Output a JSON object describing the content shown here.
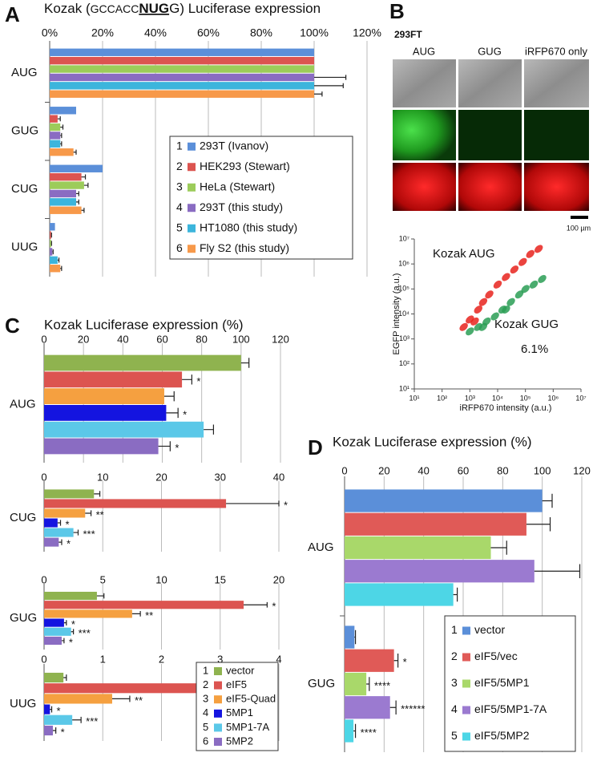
{
  "panel_labels": [
    "A",
    "B",
    "C",
    "D"
  ],
  "images": {
    "cell_line": "293FT",
    "columns": [
      "AUG",
      "GUG",
      "iRFP670 only"
    ],
    "scale_bar": "100 µm"
  },
  "chart_data": [
    {
      "type": "hbar",
      "title_parts": [
        "Kozak (",
        "GCCACC",
        "NUG",
        "G) Luciferase expression"
      ],
      "categories": [
        "AUG",
        "GUG",
        "CUG",
        "UUG"
      ],
      "xlim": [
        0,
        120
      ],
      "xticks": [
        {
          "value": 0,
          "label": "0%"
        },
        {
          "value": 20,
          "label": "20%"
        },
        {
          "value": 40,
          "label": "40%"
        },
        {
          "value": 60,
          "label": "60%"
        },
        {
          "value": 80,
          "label": "80%"
        },
        {
          "value": 100,
          "label": "100%"
        },
        {
          "value": 120,
          "label": "120%"
        }
      ],
      "grid": true,
      "legend_index": [
        "1",
        "2",
        "3",
        "4",
        "5",
        "6"
      ],
      "series": [
        {
          "name": "293T (Ivanov)",
          "color": "#5b8fd9",
          "values": [
            100,
            10,
            20,
            2
          ],
          "errors": [
            null,
            null,
            null,
            null
          ]
        },
        {
          "name": "HEK293 (Stewart)",
          "color": "#dc5450",
          "values": [
            100,
            3,
            12,
            0.5
          ],
          "errors": [
            null,
            1,
            1.5,
            0.2
          ]
        },
        {
          "name": "HeLa (Stewart)",
          "color": "#9ccc5a",
          "values": [
            100,
            4,
            13,
            0.5
          ],
          "errors": [
            null,
            1,
            1.5,
            0.2
          ]
        },
        {
          "name": "293T (this study)",
          "color": "#8a6cc2",
          "values": [
            100,
            4,
            10,
            1
          ],
          "errors": [
            12,
            0.5,
            1,
            0.3
          ]
        },
        {
          "name": "HT1080 (this study)",
          "color": "#3cb5dc",
          "values": [
            100,
            4,
            10,
            3
          ],
          "errors": [
            11,
            0.5,
            1,
            0.5
          ]
        },
        {
          "name": "Fly S2 (this study)",
          "color": "#f7994a",
          "values": [
            100,
            9,
            12,
            4
          ],
          "errors": [
            3,
            1,
            1,
            0.5
          ]
        }
      ]
    },
    {
      "type": "scatter",
      "xlabel": "iRFP670 intensity (a.u.)",
      "ylabel": "EGFP intensity (a.u.)",
      "xscale": "log",
      "yscale": "log",
      "xlim": [
        10,
        10000000
      ],
      "ylim": [
        10,
        10000000
      ],
      "xticks": [
        {
          "value": 10,
          "label": "10¹"
        },
        {
          "value": 100,
          "label": "10²"
        },
        {
          "value": 1000,
          "label": "10³"
        },
        {
          "value": 10000,
          "label": "10⁴"
        },
        {
          "value": 100000,
          "label": "10⁵"
        },
        {
          "value": 1000000,
          "label": "10⁶"
        },
        {
          "value": 10000000,
          "label": "10⁷"
        }
      ],
      "yticks": [
        {
          "value": 10,
          "label": "10¹"
        },
        {
          "value": 100,
          "label": "10²"
        },
        {
          "value": 1000,
          "label": "10³"
        },
        {
          "value": 10000,
          "label": "10⁴"
        },
        {
          "value": 100000,
          "label": "10⁵"
        },
        {
          "value": 1000000,
          "label": "10⁶"
        },
        {
          "value": 10000000,
          "label": "10⁷"
        }
      ],
      "annotations": [
        "Kozak AUG",
        "Kozak GUG",
        "6.1%"
      ],
      "series": [
        {
          "color": "#e8231d",
          "x": [
            600,
            1000,
            1500,
            2000,
            3000,
            5000,
            10000,
            20000,
            40000,
            80000,
            150000,
            300000
          ],
          "values": [
            3000,
            6000,
            5000,
            15000,
            30000,
            60000,
            150000,
            300000,
            600000,
            1200000,
            2500000,
            4000000
          ]
        },
        {
          "color": "#2a9e55",
          "x": [
            1000,
            2000,
            3000,
            4000,
            8000,
            15000,
            20000,
            30000,
            60000,
            100000,
            200000,
            400000
          ],
          "values": [
            2000,
            3000,
            3000,
            5000,
            8000,
            15000,
            15000,
            30000,
            60000,
            100000,
            150000,
            250000
          ]
        }
      ]
    },
    {
      "type": "hbar",
      "title": "Kozak Luciferase expression (%)",
      "categories": [
        "AUG"
      ],
      "xlim": [
        0,
        120
      ],
      "xticks": [
        0,
        20,
        40,
        60,
        80,
        100,
        120
      ],
      "grid": true,
      "series": [
        {
          "color": "#8fb34f",
          "values": [
            100
          ],
          "errors": [
            4
          ],
          "annotations": [
            null
          ]
        },
        {
          "color": "#dc5450",
          "values": [
            70
          ],
          "errors": [
            5
          ],
          "annotations": [
            "*"
          ]
        },
        {
          "color": "#f5a040",
          "values": [
            61
          ],
          "errors": [
            5
          ],
          "annotations": [
            null
          ]
        },
        {
          "color": "#1414e0",
          "values": [
            62
          ],
          "errors": [
            6
          ],
          "annotations": [
            "*"
          ]
        },
        {
          "color": "#5bc8e8",
          "values": [
            81
          ],
          "errors": [
            5
          ],
          "annotations": [
            null
          ]
        },
        {
          "color": "#8a6cc2",
          "values": [
            58
          ],
          "errors": [
            6
          ],
          "annotations": [
            "*"
          ]
        }
      ]
    },
    {
      "type": "hbar",
      "categories": [
        "CUG"
      ],
      "xlim": [
        0,
        40
      ],
      "xticks": [
        0,
        10,
        20,
        30,
        40
      ],
      "grid": true,
      "series": [
        {
          "color": "#8fb34f",
          "values": [
            8.5
          ],
          "errors": [
            1
          ],
          "annotations": [
            null
          ]
        },
        {
          "color": "#dc5450",
          "values": [
            31
          ],
          "errors": [
            9
          ],
          "annotations": [
            "*"
          ]
        },
        {
          "color": "#f5a040",
          "values": [
            7
          ],
          "errors": [
            1
          ],
          "annotations": [
            "**"
          ]
        },
        {
          "color": "#1414e0",
          "values": [
            2.3
          ],
          "errors": [
            0.5
          ],
          "annotations": [
            "*"
          ]
        },
        {
          "color": "#5bc8e8",
          "values": [
            5
          ],
          "errors": [
            0.8
          ],
          "annotations": [
            "***"
          ]
        },
        {
          "color": "#8a6cc2",
          "values": [
            2.5
          ],
          "errors": [
            0.5
          ],
          "annotations": [
            "*"
          ]
        }
      ]
    },
    {
      "type": "hbar",
      "categories": [
        "GUG"
      ],
      "xlim": [
        0,
        20
      ],
      "xticks": [
        0,
        5,
        10,
        15,
        20
      ],
      "grid": true,
      "series": [
        {
          "color": "#8fb34f",
          "values": [
            4.5
          ],
          "errors": [
            0.6
          ],
          "annotations": [
            null
          ]
        },
        {
          "color": "#dc5450",
          "values": [
            17
          ],
          "errors": [
            2
          ],
          "annotations": [
            "*"
          ]
        },
        {
          "color": "#f5a040",
          "values": [
            7.5
          ],
          "errors": [
            0.7
          ],
          "annotations": [
            "**"
          ]
        },
        {
          "color": "#1414e0",
          "values": [
            1.7
          ],
          "errors": [
            0.2
          ],
          "annotations": [
            "*"
          ]
        },
        {
          "color": "#5bc8e8",
          "values": [
            2.3
          ],
          "errors": [
            0.2
          ],
          "annotations": [
            "***"
          ]
        },
        {
          "color": "#8a6cc2",
          "values": [
            1.5
          ],
          "errors": [
            0.2
          ],
          "annotations": [
            "*"
          ]
        }
      ]
    },
    {
      "type": "hbar",
      "categories": [
        "UUG"
      ],
      "xlim": [
        0,
        4
      ],
      "xticks": [
        0,
        1,
        2,
        3,
        4
      ],
      "grid": true,
      "legend_index": [
        "1",
        "2",
        "3",
        "4",
        "5",
        "6"
      ],
      "series": [
        {
          "name": "vector",
          "color": "#8fb34f",
          "values": [
            0.33
          ],
          "errors": [
            0.05
          ],
          "annotations": [
            null
          ]
        },
        {
          "name": "eIF5",
          "color": "#dc5450",
          "values": [
            3.5
          ],
          "errors": [
            0.15
          ],
          "annotations": [
            "*"
          ]
        },
        {
          "name": "eIF5-Quad",
          "color": "#f5a040",
          "values": [
            1.16
          ],
          "errors": [
            0.3
          ],
          "annotations": [
            "**"
          ]
        },
        {
          "name": "5MP1",
          "color": "#1414e0",
          "values": [
            0.1
          ],
          "errors": [
            0.03
          ],
          "annotations": [
            "*"
          ]
        },
        {
          "name": "5MP1-7A",
          "color": "#5bc8e8",
          "values": [
            0.48
          ],
          "errors": [
            0.15
          ],
          "annotations": [
            "***"
          ]
        },
        {
          "name": "5MP2",
          "color": "#8a6cc2",
          "values": [
            0.15
          ],
          "errors": [
            0.05
          ],
          "annotations": [
            "*"
          ]
        }
      ]
    },
    {
      "type": "hbar",
      "title": "Kozak Luciferase expression (%)",
      "categories": [
        "AUG",
        "GUG"
      ],
      "xlim": [
        0,
        120
      ],
      "xticks": [
        0,
        20,
        40,
        60,
        80,
        100,
        120
      ],
      "grid": true,
      "legend_index": [
        "1",
        "2",
        "3",
        "4",
        "5"
      ],
      "series": [
        {
          "name": "vector",
          "color": "#5b8fd9",
          "values": [
            100,
            5
          ],
          "errors": [
            5,
            0.5
          ],
          "annotations": [
            null,
            null
          ]
        },
        {
          "name": "eIF5/vec",
          "color": "#e05a57",
          "values": [
            92,
            25
          ],
          "errors": [
            12,
            2
          ],
          "annotations": [
            null,
            "*"
          ]
        },
        {
          "name": "eIF5/5MP1",
          "color": "#a9d86a",
          "values": [
            74,
            11
          ],
          "errors": [
            8,
            1.5
          ],
          "annotations": [
            null,
            "****"
          ]
        },
        {
          "name": "eIF5/5MP1-7A",
          "color": "#9b7ad0",
          "values": [
            96,
            23
          ],
          "errors": [
            23,
            3
          ],
          "annotations": [
            null,
            "******"
          ]
        },
        {
          "name": "eIF5/5MP2",
          "color": "#4dd6e6",
          "values": [
            55,
            4.5
          ],
          "errors": [
            2,
            1
          ],
          "annotations": [
            null,
            "****"
          ]
        }
      ]
    }
  ]
}
